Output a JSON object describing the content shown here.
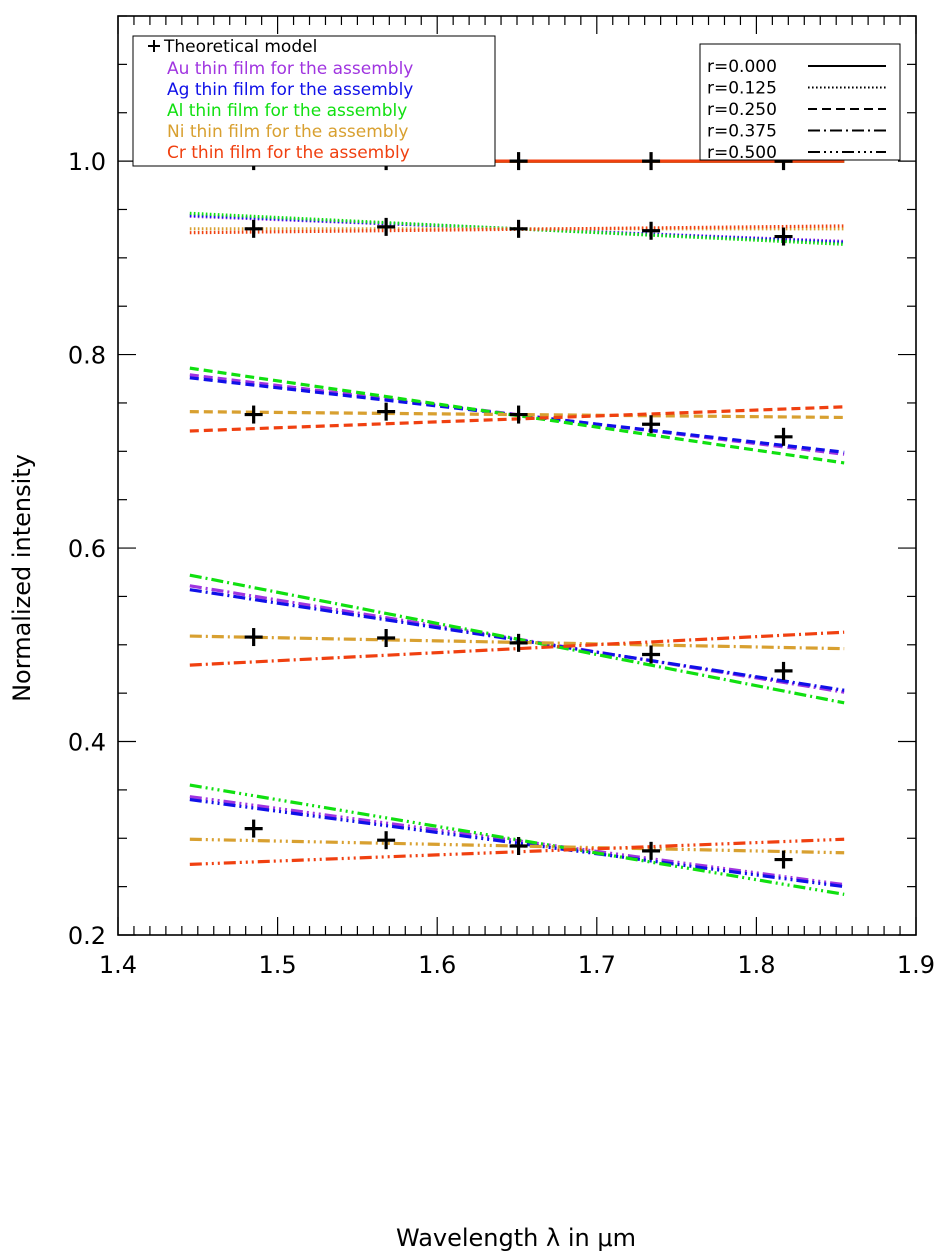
{
  "chart_data": {
    "type": "line",
    "title": "",
    "xlabel": "Wavelength λ in μm",
    "ylabel": "Normalized intensity",
    "xlim": [
      1.4,
      1.9
    ],
    "ylim": [
      0.2,
      1.15
    ],
    "x_ticks": [
      1.4,
      1.5,
      1.6,
      1.7,
      1.8,
      1.9
    ],
    "x_tick_labels": [
      "1.4",
      "1.5",
      "1.6",
      "1.7",
      "1.8",
      "1.9"
    ],
    "y_ticks": [
      0.2,
      0.4,
      0.6,
      0.8,
      1.0
    ],
    "y_tick_labels": [
      "0.2",
      "0.4",
      "0.6",
      "0.8",
      "1.0"
    ],
    "grid": false,
    "x_range_lines": [
      1.445,
      1.855
    ],
    "materials": [
      {
        "name": "Au",
        "label": "Au thin film for the assembly",
        "color": "#a035e0"
      },
      {
        "name": "Ag",
        "label": "Ag thin film for the assembly",
        "color": "#1010e8"
      },
      {
        "name": "Al",
        "label": "Al thin film for the assembly",
        "color": "#10e010"
      },
      {
        "name": "Ni",
        "label": "Ni thin film for the assembly",
        "color": "#d8a030"
      },
      {
        "name": "Cr",
        "label": "Cr thin film for the assembly",
        "color": "#f04010"
      }
    ],
    "style_legend": [
      {
        "label": "r=0.000",
        "dash": "solid"
      },
      {
        "label": "r=0.125",
        "dash": "dotted"
      },
      {
        "label": "r=0.250",
        "dash": "dashed"
      },
      {
        "label": "r=0.375",
        "dash": "dashdot"
      },
      {
        "label": "r=0.500",
        "dash": "dashdotdotdot"
      }
    ],
    "series": [
      {
        "r": "r=0.000",
        "material": "Au",
        "start": 1.0,
        "end": 1.0
      },
      {
        "r": "r=0.000",
        "material": "Ag",
        "start": 1.0,
        "end": 1.0
      },
      {
        "r": "r=0.000",
        "material": "Al",
        "start": 1.0,
        "end": 1.0
      },
      {
        "r": "r=0.000",
        "material": "Ni",
        "start": 1.0,
        "end": 1.0
      },
      {
        "r": "r=0.000",
        "material": "Cr",
        "start": 1.0,
        "end": 1.0
      },
      {
        "r": "r=0.125",
        "material": "Au",
        "start": 0.943,
        "end": 0.917
      },
      {
        "r": "r=0.125",
        "material": "Ag",
        "start": 0.944,
        "end": 0.916
      },
      {
        "r": "r=0.125",
        "material": "Al",
        "start": 0.946,
        "end": 0.914
      },
      {
        "r": "r=0.125",
        "material": "Ni",
        "start": 0.93,
        "end": 0.93
      },
      {
        "r": "r=0.125",
        "material": "Cr",
        "start": 0.926,
        "end": 0.933
      },
      {
        "r": "r=0.250",
        "material": "Au",
        "start": 0.779,
        "end": 0.697
      },
      {
        "r": "r=0.250",
        "material": "Ag",
        "start": 0.776,
        "end": 0.699
      },
      {
        "r": "r=0.250",
        "material": "Al",
        "start": 0.786,
        "end": 0.688
      },
      {
        "r": "r=0.250",
        "material": "Ni",
        "start": 0.741,
        "end": 0.735
      },
      {
        "r": "r=0.250",
        "material": "Cr",
        "start": 0.721,
        "end": 0.746
      },
      {
        "r": "r=0.375",
        "material": "Au",
        "start": 0.561,
        "end": 0.451
      },
      {
        "r": "r=0.375",
        "material": "Ag",
        "start": 0.557,
        "end": 0.453
      },
      {
        "r": "r=0.375",
        "material": "Al",
        "start": 0.572,
        "end": 0.44
      },
      {
        "r": "r=0.375",
        "material": "Ni",
        "start": 0.509,
        "end": 0.496
      },
      {
        "r": "r=0.375",
        "material": "Cr",
        "start": 0.479,
        "end": 0.513
      },
      {
        "r": "r=0.500",
        "material": "Au",
        "start": 0.343,
        "end": 0.252
      },
      {
        "r": "r=0.500",
        "material": "Ag",
        "start": 0.34,
        "end": 0.25
      },
      {
        "r": "r=0.500",
        "material": "Al",
        "start": 0.355,
        "end": 0.242
      },
      {
        "r": "r=0.500",
        "material": "Ni",
        "start": 0.299,
        "end": 0.285
      },
      {
        "r": "r=0.500",
        "material": "Cr",
        "start": 0.273,
        "end": 0.299
      }
    ],
    "theoretical_model": {
      "label": "Theoretical model",
      "x": [
        1.485,
        1.568,
        1.651,
        1.734,
        1.817
      ],
      "y": [
        [
          1.0,
          1.0,
          1.0,
          1.0,
          1.0
        ],
        [
          0.93,
          0.932,
          0.93,
          0.928,
          0.922
        ],
        [
          0.738,
          0.741,
          0.738,
          0.728,
          0.715
        ],
        [
          0.508,
          0.507,
          0.502,
          0.49,
          0.473
        ],
        [
          0.31,
          0.298,
          0.292,
          0.287,
          0.278
        ]
      ]
    }
  }
}
